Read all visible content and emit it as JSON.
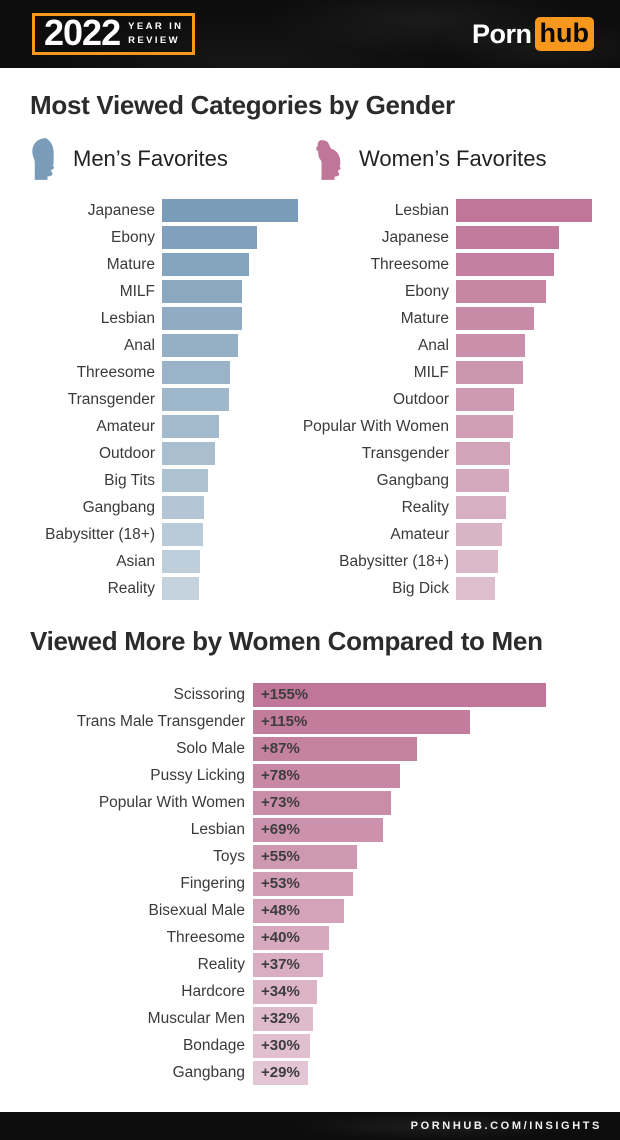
{
  "header": {
    "year": "2022",
    "tagline_line1": "YEAR IN",
    "tagline_line2": "REVIEW",
    "brand": {
      "porn": "Porn",
      "hub": "hub"
    }
  },
  "section1": {
    "title": "Most Viewed Categories by Gender",
    "men": {
      "legend": "Men’s Favorites",
      "icon": "male-head-icon"
    },
    "women": {
      "legend": "Women’s Favorites",
      "icon": "female-head-icon"
    }
  },
  "section2": {
    "title": "Viewed More by Women Compared to Men"
  },
  "footer": {
    "url": "PORNHUB.COM/INSIGHTS"
  },
  "colors": {
    "accent_orange": "#f7971d",
    "men_bar_start": "#7b9cb8",
    "men_bar_end": "#c3d2dd",
    "women_bar_start": "#bf7698",
    "women_bar_end": "#ddbecd",
    "diff_bar_start": "#bf7698",
    "diff_bar_end": "#e4c5d3",
    "text_dark": "#2b2b2b",
    "label_gray": "#3a3a3a"
  },
  "chart_data": [
    {
      "type": "bar",
      "orientation": "horizontal",
      "title": "Men’s Favorites",
      "categories": [
        "Japanese",
        "Ebony",
        "Mature",
        "MILF",
        "Lesbian",
        "Anal",
        "Threesome",
        "Transgender",
        "Amateur",
        "Outdoor",
        "Big Tits",
        "Gangbang",
        "Babysitter (18+)",
        "Asian",
        "Reality"
      ],
      "values": [
        100,
        70,
        64,
        59,
        59,
        56,
        50,
        49,
        42,
        39,
        34,
        31,
        30,
        28,
        27
      ],
      "xlim": [
        0,
        100
      ],
      "grid": false,
      "value_note": "relative bar length as % of longest bar; no numeric axis shown in source"
    },
    {
      "type": "bar",
      "orientation": "horizontal",
      "title": "Women’s Favorites",
      "categories": [
        "Lesbian",
        "Japanese",
        "Threesome",
        "Ebony",
        "Mature",
        "Anal",
        "MILF",
        "Outdoor",
        "Popular With Women",
        "Transgender",
        "Gangbang",
        "Reality",
        "Amateur",
        "Babysitter (18+)",
        "Big Dick"
      ],
      "values": [
        100,
        76,
        72,
        66,
        57,
        51,
        49,
        43,
        42,
        40,
        39,
        37,
        34,
        31,
        29
      ],
      "xlim": [
        0,
        100
      ],
      "grid": false,
      "value_note": "relative bar length as % of longest bar; no numeric axis shown in source"
    },
    {
      "type": "bar",
      "orientation": "horizontal",
      "title": "Viewed More by Women Compared to Men",
      "categories": [
        "Scissoring",
        "Trans Male Transgender",
        "Solo Male",
        "Pussy Licking",
        "Popular With Women",
        "Lesbian",
        "Toys",
        "Fingering",
        "Bisexual Male",
        "Threesome",
        "Reality",
        "Hardcore",
        "Muscular Men",
        "Bondage",
        "Gangbang"
      ],
      "values": [
        155,
        115,
        87,
        78,
        73,
        69,
        55,
        53,
        48,
        40,
        37,
        34,
        32,
        30,
        29
      ],
      "data_labels": [
        "+155%",
        "+115%",
        "+87%",
        "+78%",
        "+73%",
        "+69%",
        "+55%",
        "+53%",
        "+48%",
        "+40%",
        "+37%",
        "+34%",
        "+32%",
        "+30%",
        "+29%"
      ],
      "unit": "% more viewed by women",
      "xlim": [
        0,
        155
      ],
      "grid": false
    }
  ]
}
